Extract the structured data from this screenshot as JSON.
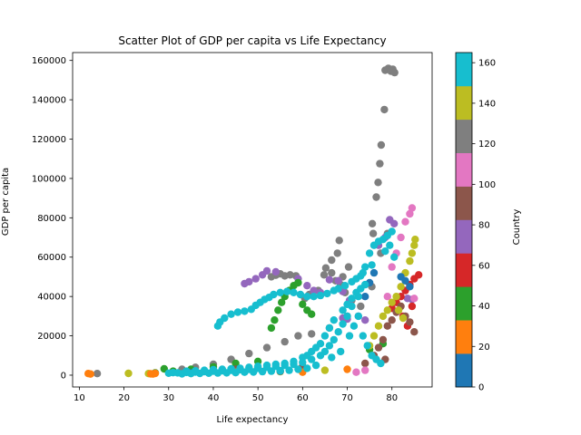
{
  "chart_data": {
    "type": "scatter",
    "title": "Scatter Plot of GDP per capita vs Life Expectancy",
    "xlabel": "Life expectancy",
    "ylabel": "GDP per capita",
    "xlim": [
      8.5,
      89
    ],
    "ylim": [
      -6000,
      164000
    ],
    "xticks": [
      10,
      20,
      30,
      40,
      50,
      60,
      70,
      80
    ],
    "yticks": [
      0,
      20000,
      40000,
      60000,
      80000,
      100000,
      120000,
      140000,
      160000
    ],
    "grid": false,
    "colorbar": {
      "label": "Country",
      "range": [
        0,
        165
      ],
      "ticks": [
        0,
        20,
        40,
        60,
        80,
        100,
        120,
        140,
        160
      ],
      "colors": [
        "#1f77b4",
        "#ff7f0e",
        "#2ca02c",
        "#d62728",
        "#9467bd",
        "#8c564b",
        "#e377c2",
        "#7f7f7f",
        "#bcbd22",
        "#17becf"
      ]
    },
    "series": [
      {
        "color": "#7f7f7f",
        "points": [
          [
            78.5,
            155000
          ],
          [
            79.2,
            156000
          ],
          [
            79.8,
            154500
          ],
          [
            80.2,
            155500
          ],
          [
            80.6,
            153800
          ],
          [
            78.3,
            135000
          ],
          [
            77.6,
            117000
          ],
          [
            77.3,
            107500
          ],
          [
            76.9,
            98000
          ],
          [
            76.5,
            90500
          ],
          [
            75.6,
            77000
          ],
          [
            75.8,
            72000
          ],
          [
            68.2,
            68500
          ],
          [
            67.8,
            62000
          ],
          [
            66.5,
            58500
          ],
          [
            65.2,
            54500
          ],
          [
            64.8,
            51000
          ],
          [
            63.5,
            43000
          ],
          [
            58.5,
            50500
          ],
          [
            57.2,
            51000
          ],
          [
            56.0,
            50500
          ],
          [
            55.0,
            51500
          ],
          [
            54.0,
            50800
          ],
          [
            53.0,
            50000
          ],
          [
            61.5,
            41000
          ],
          [
            60.5,
            39000
          ],
          [
            66.5,
            52000
          ],
          [
            67.4,
            48000
          ],
          [
            68.5,
            46000
          ],
          [
            69.5,
            42000
          ],
          [
            71.0,
            38000
          ],
          [
            70.3,
            55000
          ],
          [
            69.0,
            50000
          ],
          [
            62.0,
            21000
          ],
          [
            59.0,
            20000
          ],
          [
            56.0,
            17000
          ],
          [
            52.0,
            14000
          ],
          [
            48.0,
            11000
          ],
          [
            44.0,
            8000
          ],
          [
            40.0,
            5500
          ],
          [
            36.0,
            4000
          ],
          [
            33.0,
            3000
          ],
          [
            14.0,
            800
          ],
          [
            66.0,
            24000
          ],
          [
            70.0,
            30000
          ],
          [
            73.0,
            35000
          ],
          [
            75.5,
            45000
          ],
          [
            77.5,
            62000
          ],
          [
            79.0,
            72000
          ]
        ]
      },
      {
        "color": "#9467bd",
        "points": [
          [
            47.0,
            46500
          ],
          [
            48.0,
            47500
          ],
          [
            49.5,
            49000
          ],
          [
            51.0,
            51000
          ],
          [
            52.0,
            53000
          ],
          [
            54.0,
            52500
          ],
          [
            59.0,
            49000
          ],
          [
            61.0,
            45500
          ],
          [
            62.5,
            43000
          ],
          [
            64.0,
            42000
          ],
          [
            66.0,
            48500
          ],
          [
            68.0,
            48000
          ],
          [
            69.0,
            42500
          ],
          [
            70.5,
            38000
          ],
          [
            72.5,
            30000
          ],
          [
            74.0,
            28000
          ],
          [
            79.5,
            79000
          ],
          [
            80.5,
            77000
          ],
          [
            77.0,
            66000
          ],
          [
            78.5,
            70000
          ],
          [
            83.5,
            39000
          ],
          [
            84.5,
            38500
          ],
          [
            69.0,
            29000
          ],
          [
            70.0,
            28500
          ]
        ]
      },
      {
        "color": "#2ca02c",
        "points": [
          [
            53.0,
            24000
          ],
          [
            53.7,
            28000
          ],
          [
            54.5,
            33000
          ],
          [
            55.3,
            37000
          ],
          [
            56.0,
            40000
          ],
          [
            57.0,
            43000
          ],
          [
            58.0,
            45500
          ],
          [
            59.0,
            47000
          ],
          [
            60.0,
            36000
          ],
          [
            61.0,
            33000
          ],
          [
            62.0,
            31000
          ],
          [
            27.0,
            1200
          ],
          [
            29.0,
            3200
          ],
          [
            31.0,
            2000
          ],
          [
            35.0,
            3000
          ],
          [
            40.0,
            4200
          ],
          [
            45.0,
            6000
          ],
          [
            50.0,
            7000
          ],
          [
            75.0,
            13000
          ],
          [
            78.0,
            16000
          ]
        ]
      },
      {
        "color": "#d62728",
        "points": [
          [
            80.0,
            34000
          ],
          [
            81.0,
            37000
          ],
          [
            82.0,
            40000
          ],
          [
            83.0,
            43000
          ],
          [
            84.0,
            46000
          ],
          [
            85.0,
            49000
          ],
          [
            86.0,
            51000
          ],
          [
            82.5,
            30000
          ],
          [
            83.5,
            25000
          ],
          [
            84.5,
            35000
          ]
        ]
      },
      {
        "color": "#8c564b",
        "points": [
          [
            79.0,
            25000
          ],
          [
            80.0,
            28000
          ],
          [
            81.0,
            32000
          ],
          [
            82.0,
            35000
          ],
          [
            83.0,
            30000
          ],
          [
            84.0,
            27000
          ],
          [
            85.0,
            22000
          ],
          [
            76.0,
            10000
          ],
          [
            77.0,
            14000
          ],
          [
            78.0,
            18000
          ],
          [
            78.5,
            8000
          ],
          [
            74.0,
            6000
          ],
          [
            45.0,
            3000
          ],
          [
            50.0,
            3800
          ],
          [
            60.0,
            4500
          ]
        ]
      },
      {
        "color": "#e377c2",
        "points": [
          [
            80.0,
            55000
          ],
          [
            81.0,
            62000
          ],
          [
            82.0,
            70000
          ],
          [
            83.0,
            78000
          ],
          [
            84.0,
            82000
          ],
          [
            84.5,
            85000
          ],
          [
            85.0,
            39000
          ],
          [
            79.0,
            40000
          ],
          [
            72.0,
            1500
          ],
          [
            74.0,
            2500
          ]
        ]
      },
      {
        "color": "#bcbd22",
        "points": [
          [
            75.0,
            15000
          ],
          [
            76.0,
            20000
          ],
          [
            77.0,
            25000
          ],
          [
            78.0,
            30000
          ],
          [
            79.0,
            33000
          ],
          [
            80.0,
            37000
          ],
          [
            81.0,
            40000
          ],
          [
            82.0,
            45000
          ],
          [
            83.0,
            52000
          ],
          [
            84.0,
            58000
          ],
          [
            84.5,
            62000
          ],
          [
            85.0,
            66000
          ],
          [
            85.2,
            69000
          ],
          [
            81.5,
            33000
          ],
          [
            82.5,
            29000
          ],
          [
            21.0,
            900
          ],
          [
            25.5,
            800
          ],
          [
            35.0,
            900
          ],
          [
            45.0,
            1500
          ],
          [
            55.0,
            1800
          ],
          [
            65.0,
            2500
          ]
        ]
      },
      {
        "color": "#ff7f0e",
        "points": [
          [
            12.0,
            800
          ],
          [
            12.5,
            600
          ],
          [
            26.0,
            700
          ],
          [
            26.5,
            600
          ],
          [
            27.0,
            900
          ],
          [
            60.0,
            1500
          ],
          [
            70.0,
            3000
          ]
        ]
      },
      {
        "color": "#1f77b4",
        "points": [
          [
            82.0,
            50000
          ],
          [
            83.0,
            48000
          ],
          [
            84.0,
            45000
          ],
          [
            74.0,
            40000
          ],
          [
            75.0,
            47000
          ],
          [
            76.0,
            52000
          ],
          [
            35.0,
            1200
          ],
          [
            55.0,
            2000
          ]
        ]
      },
      {
        "color": "#17becf",
        "points": [
          [
            41.0,
            25000
          ],
          [
            41.5,
            27000
          ],
          [
            42.5,
            29000
          ],
          [
            44.0,
            31000
          ],
          [
            45.5,
            32000
          ],
          [
            47.0,
            32500
          ],
          [
            48.5,
            33500
          ],
          [
            49.5,
            35500
          ],
          [
            50.5,
            37000
          ],
          [
            51.5,
            38500
          ],
          [
            52.5,
            39500
          ],
          [
            53.5,
            41000
          ],
          [
            55.0,
            42000
          ],
          [
            56.5,
            42500
          ],
          [
            58.0,
            42000
          ],
          [
            59.5,
            41000
          ],
          [
            61.0,
            40000
          ],
          [
            62.5,
            40000
          ],
          [
            64.0,
            40500
          ],
          [
            65.5,
            41500
          ],
          [
            67.0,
            43000
          ],
          [
            68.0,
            44000
          ],
          [
            69.5,
            45500
          ],
          [
            71.0,
            47500
          ],
          [
            72.0,
            49000
          ],
          [
            73.0,
            50500
          ],
          [
            74.0,
            55000
          ],
          [
            75.0,
            62000
          ],
          [
            76.0,
            66000
          ],
          [
            77.0,
            68000
          ],
          [
            78.0,
            69000
          ],
          [
            79.0,
            71000
          ],
          [
            80.0,
            73000
          ],
          [
            75.5,
            56000
          ],
          [
            73.5,
            52000
          ],
          [
            72.5,
            40000
          ],
          [
            71.0,
            35000
          ],
          [
            70.0,
            30000
          ],
          [
            69.0,
            26000
          ],
          [
            68.0,
            22000
          ],
          [
            67.0,
            18000
          ],
          [
            66.0,
            15000
          ],
          [
            65.0,
            12000
          ],
          [
            64.0,
            10000
          ],
          [
            62.0,
            8000
          ],
          [
            60.0,
            6500
          ],
          [
            58.0,
            5500
          ],
          [
            56.0,
            5000
          ],
          [
            54.0,
            4500
          ],
          [
            52.0,
            4000
          ],
          [
            50.0,
            3500
          ],
          [
            48.0,
            3000
          ],
          [
            46.0,
            2800
          ],
          [
            44.0,
            2500
          ],
          [
            42.0,
            2200
          ],
          [
            40.0,
            2000
          ],
          [
            38.0,
            1800
          ],
          [
            36.0,
            1600
          ],
          [
            34.0,
            1400
          ],
          [
            32.0,
            1200
          ],
          [
            30.0,
            1000
          ],
          [
            31.0,
            1300
          ],
          [
            70.5,
            20000
          ],
          [
            71.5,
            25000
          ],
          [
            72.5,
            30000
          ],
          [
            73.5,
            20000
          ],
          [
            74.5,
            15000
          ],
          [
            75.5,
            10000
          ],
          [
            76.5,
            8000
          ],
          [
            77.5,
            6000
          ],
          [
            68.5,
            12000
          ],
          [
            66.5,
            9000
          ],
          [
            63.0,
            5000
          ],
          [
            61.0,
            3500
          ],
          [
            59.0,
            3000
          ],
          [
            57.0,
            2500
          ],
          [
            55.0,
            2300
          ],
          [
            53.0,
            2000
          ],
          [
            51.0,
            1800
          ],
          [
            49.0,
            1600
          ],
          [
            47.0,
            1500
          ],
          [
            45.0,
            1300
          ],
          [
            43.0,
            1200
          ],
          [
            41.0,
            1100
          ],
          [
            39.0,
            1000
          ],
          [
            37.0,
            900
          ],
          [
            35.0,
            800
          ],
          [
            33.0,
            700
          ],
          [
            69.0,
            33000
          ],
          [
            70.0,
            36000
          ],
          [
            71.0,
            39000
          ],
          [
            72.0,
            42000
          ],
          [
            73.0,
            44000
          ],
          [
            74.0,
            46000
          ],
          [
            78.5,
            63000
          ],
          [
            79.5,
            66000
          ],
          [
            80.5,
            60000
          ],
          [
            67.0,
            28000
          ],
          [
            66.0,
            24000
          ],
          [
            65.0,
            20000
          ],
          [
            64.0,
            16000
          ],
          [
            63.0,
            14000
          ],
          [
            62.0,
            12000
          ],
          [
            61.0,
            10000
          ],
          [
            60.0,
            9000
          ],
          [
            58.0,
            7000
          ],
          [
            56.0,
            6000
          ],
          [
            54.0,
            5500
          ],
          [
            52.0,
            5000
          ],
          [
            50.0,
            4500
          ],
          [
            48.0,
            4000
          ],
          [
            46.0,
            3500
          ],
          [
            44.0,
            3200
          ],
          [
            42.0,
            3000
          ],
          [
            40.0,
            2800
          ],
          [
            38.0,
            2500
          ],
          [
            36.0,
            2200
          ],
          [
            34.0,
            2000
          ]
        ]
      }
    ]
  }
}
